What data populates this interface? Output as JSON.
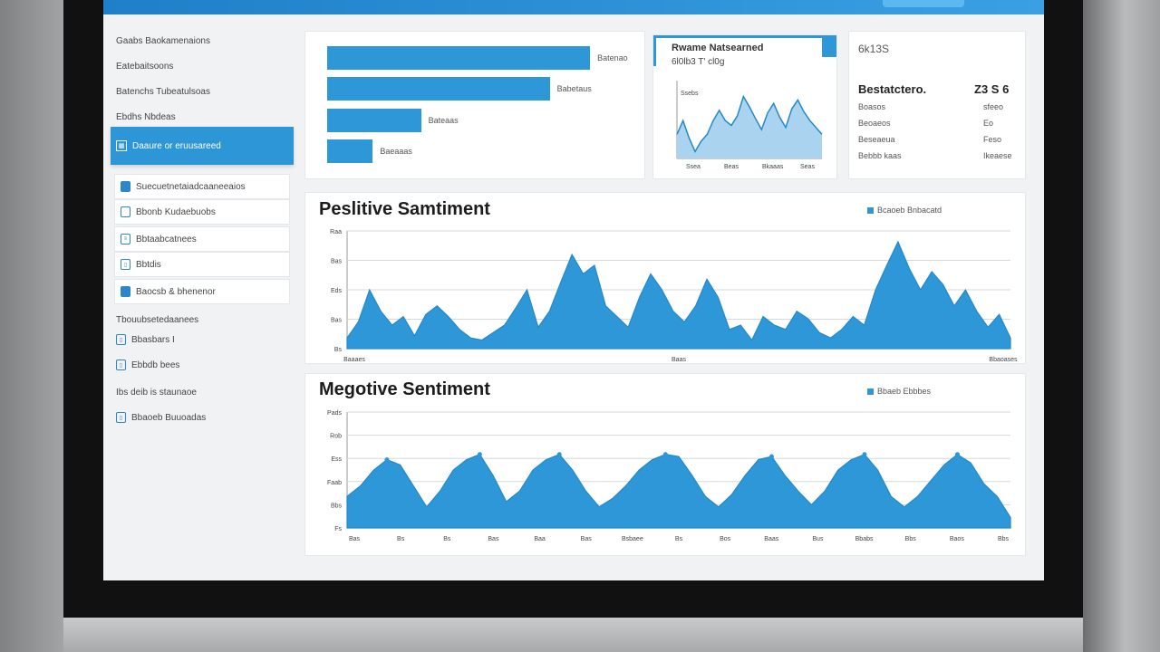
{
  "colors": {
    "accent": "#2e97d8",
    "accent_light": "#a9d3ef",
    "sidebar_active": "#2d96d6"
  },
  "sidebar": {
    "items": [
      {
        "label": "Gaabs Baokamenaions",
        "style": "plain"
      },
      {
        "label": "Eatebaitsoons",
        "style": "plain"
      },
      {
        "label": "Batenchs Tubeatulsoas",
        "style": "plain"
      },
      {
        "label": "Ebdhs Nbdeas",
        "style": "plain"
      },
      {
        "label": "Daaure or eruusareed",
        "style": "active",
        "icon": "grid-icon"
      },
      {
        "label": "Suecuetnetaiadcaaneeaios",
        "style": "box",
        "icon": "square-icon"
      },
      {
        "label": "Bbonb Kudaebuobs",
        "style": "box",
        "icon": "square-icon"
      },
      {
        "label": "Bbtaabcatnees",
        "style": "box",
        "icon": "list-icon"
      },
      {
        "label": "Bbtdis",
        "style": "box",
        "icon": "doc-icon"
      },
      {
        "label": "Baocsb & bhenenor",
        "style": "box",
        "icon": "square-icon"
      },
      {
        "label": "Tbouubsetedaanees",
        "style": "plain"
      },
      {
        "label": "Bbasbars I",
        "style": "plain2",
        "icon": "doc-icon"
      },
      {
        "label": "Ebbdb bees",
        "style": "plain2",
        "icon": "doc-icon"
      },
      {
        "label": "Ibs deib is staunaoe",
        "style": "plain"
      },
      {
        "label": "Bbaoeb Buuoadas",
        "style": "plain2",
        "icon": "doc-icon"
      }
    ]
  },
  "bar_card": {
    "bars": [
      {
        "label": "Batenao",
        "value": 0.98
      },
      {
        "label": "Babetaus",
        "value": 0.83
      },
      {
        "label": "Bateaas",
        "value": 0.35
      },
      {
        "label": "Baeaaas",
        "value": 0.17
      }
    ]
  },
  "trend_card": {
    "title": "Rwame Natsearned",
    "subtitle": "6l0lb3 T' cl0g",
    "ytick": "Ssebs",
    "xticks": [
      "Ssea",
      "Beas",
      "Bkaaas",
      "Seas"
    ]
  },
  "stats_card": {
    "label": "6k13S",
    "title": "Bestatctero.",
    "value": "Z3 S 6",
    "rows": [
      {
        "name": "Boasos",
        "value": "sfeeo"
      },
      {
        "name": "Beoaeos",
        "value": "Eo"
      },
      {
        "name": "Beseaeua",
        "value": "Feso"
      },
      {
        "name": "Bebbb kaas",
        "value": "Ikeaese"
      }
    ]
  },
  "positive": {
    "title": "Peslitive Samtiment",
    "legend": "Bcaoeb Bnbacatd",
    "yticks": [
      "Raa",
      "Bas",
      "Eds",
      "Bas",
      "Bs"
    ],
    "xticks": [
      "Baaaes",
      "Baas",
      "Bbaoases"
    ]
  },
  "negative": {
    "title": "Megotive Sentiment",
    "legend": "Bbaeb Ebbbes",
    "yticks": [
      "Pads",
      "Rob",
      "Ess",
      "Faab",
      "Bbs",
      "Fs"
    ],
    "xticks": [
      "Bas",
      "Bs",
      "Bs",
      "Bas",
      "Baa",
      "Bas",
      "Bsbaee",
      "Bs",
      "Bos",
      "Baas",
      "Bus",
      "Bbabs",
      "Bbs",
      "Baos",
      "Bbs"
    ]
  },
  "chart_data": [
    {
      "type": "area",
      "title": "",
      "x": [
        0,
        1,
        2,
        3,
        4,
        5,
        6,
        7,
        8,
        9,
        10,
        11,
        12,
        13,
        14,
        15,
        16,
        17,
        18,
        19,
        20,
        21,
        22,
        23,
        24,
        25,
        26,
        27,
        28,
        29,
        30,
        31,
        32,
        33,
        34,
        35,
        36,
        37,
        38,
        39,
        40,
        41,
        42,
        43,
        44,
        45,
        46,
        47,
        48,
        49,
        50,
        51,
        52,
        53,
        54,
        55,
        56,
        57,
        58,
        59
      ],
      "series": [
        {
          "values": [
            0.1,
            0.25,
            0.55,
            0.35,
            0.22,
            0.3,
            0.12,
            0.32,
            0.4,
            0.3,
            0.18,
            0.1,
            0.08,
            0.15,
            0.22,
            0.38,
            0.55,
            0.2,
            0.35,
            0.62,
            0.88,
            0.7,
            0.78,
            0.4,
            0.3,
            0.2,
            0.48,
            0.7,
            0.55,
            0.35,
            0.25,
            0.4,
            0.65,
            0.48,
            0.18,
            0.22,
            0.08,
            0.3,
            0.22,
            0.18,
            0.35,
            0.28,
            0.15,
            0.1,
            0.18,
            0.3,
            0.22,
            0.55,
            0.78,
            1.0,
            0.75,
            0.55,
            0.72,
            0.6,
            0.4,
            0.55,
            0.35,
            0.2,
            0.32,
            0.1
          ]
        }
      ],
      "ylim": [
        0,
        1
      ]
    },
    {
      "type": "area",
      "title": "",
      "x": [
        0,
        1,
        2,
        3,
        4,
        5,
        6,
        7,
        8,
        9,
        10,
        11,
        12,
        13,
        14,
        15,
        16,
        17,
        18,
        19,
        20,
        21,
        22,
        23,
        24,
        25,
        26,
        27,
        28,
        29,
        30,
        31,
        32,
        33,
        34,
        35,
        36,
        37,
        38,
        39,
        40,
        41,
        42,
        43,
        44,
        45,
        46,
        47,
        48,
        49,
        50
      ],
      "series": [
        {
          "values": [
            0.3,
            0.4,
            0.55,
            0.65,
            0.6,
            0.4,
            0.2,
            0.35,
            0.55,
            0.65,
            0.7,
            0.5,
            0.25,
            0.35,
            0.55,
            0.65,
            0.7,
            0.55,
            0.35,
            0.2,
            0.28,
            0.4,
            0.55,
            0.65,
            0.7,
            0.68,
            0.5,
            0.3,
            0.2,
            0.32,
            0.5,
            0.65,
            0.68,
            0.5,
            0.35,
            0.22,
            0.35,
            0.55,
            0.65,
            0.7,
            0.55,
            0.3,
            0.2,
            0.3,
            0.45,
            0.6,
            0.7,
            0.62,
            0.42,
            0.3,
            0.1
          ]
        }
      ],
      "ylim": [
        0,
        1
      ]
    },
    {
      "type": "area",
      "title": "",
      "x": [
        0,
        1,
        2,
        3,
        4,
        5,
        6,
        7,
        8,
        9,
        10,
        11,
        12,
        13,
        14,
        15,
        16,
        17,
        18,
        19,
        20,
        21,
        22,
        23,
        24
      ],
      "series": [
        {
          "values": [
            0.35,
            0.55,
            0.3,
            0.1,
            0.25,
            0.35,
            0.55,
            0.7,
            0.55,
            0.48,
            0.62,
            0.9,
            0.75,
            0.58,
            0.42,
            0.66,
            0.8,
            0.6,
            0.45,
            0.72,
            0.85,
            0.68,
            0.55,
            0.45,
            0.35
          ]
        }
      ],
      "ylim": [
        0,
        1
      ]
    }
  ]
}
